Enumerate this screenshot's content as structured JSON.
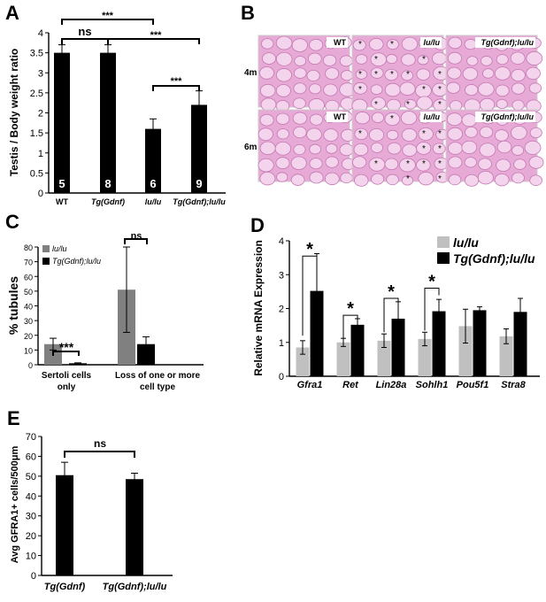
{
  "panel_letters": [
    "A",
    "B",
    "C",
    "D",
    "E"
  ],
  "chart_data": [
    {
      "panel": "A",
      "type": "bar",
      "ylabel": "Testis / Body weight ratio",
      "ylim": [
        0,
        4
      ],
      "yticks": [
        "0",
        "0.5",
        "1",
        "1.5",
        "2",
        "2.5",
        "3",
        "3.5",
        "4"
      ],
      "categories": [
        "WT",
        "Tg(Gdnf)",
        "lu/lu",
        "Tg(Gdnf);lu/lu"
      ],
      "values": [
        3.5,
        3.5,
        1.6,
        2.2
      ],
      "errors": [
        0.2,
        0.2,
        0.25,
        0.35
      ],
      "n_labels": [
        "5",
        "8",
        "6",
        "9"
      ],
      "bar_color": "#000000",
      "significance": [
        {
          "from": 0,
          "to": 1,
          "label": "ns"
        },
        {
          "from": 0,
          "to": 2,
          "label": "***"
        },
        {
          "from": 1,
          "to": 3,
          "label": "***"
        },
        {
          "from": 2,
          "to": 3,
          "label": "***"
        }
      ]
    },
    {
      "panel": "C",
      "type": "bar",
      "ylabel": "% tubules",
      "ylim": [
        0,
        80
      ],
      "yticks": [
        "0",
        "10",
        "20",
        "30",
        "40",
        "50",
        "60",
        "70",
        "80"
      ],
      "categories": [
        "Sertoli cells only",
        "Loss of one or more cell type"
      ],
      "series": [
        {
          "name": "lu/lu",
          "color": "#808080",
          "values": [
            14,
            51
          ],
          "errors": [
            4,
            29
          ]
        },
        {
          "name": "Tg(Gdnf);lu/lu",
          "color": "#000000",
          "values": [
            1,
            14
          ],
          "errors": [
            0.3,
            5
          ]
        }
      ],
      "significance": [
        {
          "category": 0,
          "label": "***"
        },
        {
          "category": 1,
          "label": "ns"
        }
      ]
    },
    {
      "panel": "D",
      "type": "bar",
      "ylabel": "Relative mRNA Expression",
      "ylim": [
        0,
        4
      ],
      "yticks": [
        "0",
        "1",
        "2",
        "3",
        "4"
      ],
      "categories": [
        "Gfra1",
        "Ret",
        "Lin28a",
        "Sohlh1",
        "Pou5f1",
        "Stra8"
      ],
      "series": [
        {
          "name": "lu/lu",
          "color": "#c0c0c0",
          "values": [
            0.85,
            1.0,
            1.05,
            1.1,
            1.48,
            1.18
          ],
          "errors": [
            0.2,
            0.12,
            0.2,
            0.2,
            0.5,
            0.22
          ]
        },
        {
          "name": "Tg(Gdnf);lu/lu",
          "color": "#000000",
          "values": [
            2.52,
            1.52,
            1.7,
            1.92,
            1.95,
            1.9
          ],
          "errors": [
            1.1,
            0.18,
            0.5,
            0.35,
            0.1,
            0.4
          ]
        }
      ],
      "significance": [
        {
          "category": 0,
          "label": "*"
        },
        {
          "category": 1,
          "label": "*"
        },
        {
          "category": 2,
          "label": "*"
        },
        {
          "category": 3,
          "label": "*"
        }
      ]
    },
    {
      "panel": "E",
      "type": "bar",
      "ylabel": "Avg GFRA1+ cells/500μm",
      "ylim": [
        0,
        70
      ],
      "yticks": [
        "0",
        "10",
        "20",
        "30",
        "40",
        "50",
        "60",
        "70"
      ],
      "categories": [
        "Tg(Gdnf)",
        "Tg(Gdnf);lu/lu"
      ],
      "values": [
        50.5,
        48.5
      ],
      "errors": [
        6.5,
        3
      ],
      "bar_color": "#000000",
      "significance": [
        {
          "from": 0,
          "to": 1,
          "label": "ns"
        }
      ]
    }
  ],
  "histology": {
    "panel": "B",
    "row_labels": [
      "4m",
      "6m"
    ],
    "column_labels": [
      "WT",
      "lu/lu",
      "Tg(Gdnf);lu/lu"
    ],
    "tissue_color": "#e7a9d6",
    "tubule_color": "#f4d4ec"
  }
}
